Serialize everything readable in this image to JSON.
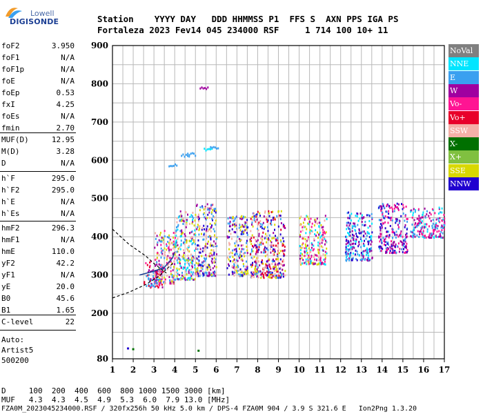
{
  "logo": {
    "top": "Lowell",
    "main": "DIGISONDE"
  },
  "header": {
    "row1": "Station    YYYY DAY   DDD HHMMSS P1  FFS S  AXN PPS IGA PS",
    "row2": "Fortaleza 2023 Fev14 045 234000 RSF     1 714 100 10+ 11"
  },
  "params": {
    "group1": [
      {
        "name": "foF2",
        "value": "3.950"
      },
      {
        "name": "foF1",
        "value": "N/A"
      },
      {
        "name": "foF1p",
        "value": "N/A"
      },
      {
        "name": "foE",
        "value": "N/A"
      },
      {
        "name": "foEp",
        "value": "0.53"
      },
      {
        "name": "fxI",
        "value": "4.25"
      },
      {
        "name": "foEs",
        "value": "N/A"
      },
      {
        "name": "fmin",
        "value": "2.70"
      }
    ],
    "group2": [
      {
        "name": "MUF(D)",
        "value": "12.95"
      },
      {
        "name": "M(D)",
        "value": "3.28"
      },
      {
        "name": "D",
        "value": "N/A"
      }
    ],
    "group3": [
      {
        "name": "h`F",
        "value": "295.0"
      },
      {
        "name": "h`F2",
        "value": "295.0"
      },
      {
        "name": "h`E",
        "value": "N/A"
      },
      {
        "name": "h`Es",
        "value": "N/A"
      }
    ],
    "group4": [
      {
        "name": "hmF2",
        "value": "296.3"
      },
      {
        "name": "hmF1",
        "value": "N/A"
      },
      {
        "name": "hmE",
        "value": "110.0"
      },
      {
        "name": "yF2",
        "value": "42.2"
      },
      {
        "name": "yF1",
        "value": "N/A"
      },
      {
        "name": "yE",
        "value": "20.0"
      },
      {
        "name": "B0",
        "value": "45.6"
      },
      {
        "name": "B1",
        "value": "1.65"
      }
    ],
    "group5": [
      {
        "name": "C-level",
        "value": "22"
      }
    ],
    "auto": [
      "Auto:",
      "Artist5",
      "500200"
    ]
  },
  "legend": [
    {
      "label": "NoVal",
      "color": "#808080"
    },
    {
      "label": "NNE",
      "color": "#00e5ff"
    },
    {
      "label": "E",
      "color": "#3aa0f0"
    },
    {
      "label": "W",
      "color": "#a000a0"
    },
    {
      "label": "Vo-",
      "color": "#ff1493"
    },
    {
      "label": "Vo+",
      "color": "#e8002a"
    },
    {
      "label": "SSW",
      "color": "#f4b0a8"
    },
    {
      "label": "X-",
      "color": "#007000"
    },
    {
      "label": "X+",
      "color": "#80c040"
    },
    {
      "label": "SSE",
      "color": "#d8d800"
    },
    {
      "label": "NNW",
      "color": "#2000d0"
    }
  ],
  "bottom": {
    "d_row": "D     100  200  400  600  800 1000 1500 3000 [km]",
    "muf_row": "MUF   4.3  4.3  4.5  4.9  5.3  6.0  7.9 13.0 [MHz]",
    "footer": "FZA0M_2023045234000.RSF / 320fx256h 50 kHz 5.0 km / DPS-4 FZA0M 904 / 3.9 S 321.6 E   Ion2Png 1.3.20"
  },
  "chart_data": {
    "type": "scatter",
    "x_ticks": [
      "1",
      "2",
      "3",
      "4",
      "5",
      "6",
      "7",
      "8",
      "9",
      "10",
      "11",
      "12",
      "13",
      "14",
      "15",
      "16",
      "17"
    ],
    "y_ticks": [
      "80",
      "200",
      "300",
      "400",
      "500",
      "600",
      "700",
      "800",
      "900"
    ],
    "xlim": [
      1,
      17
    ],
    "ylim_label_range": [
      80,
      900
    ],
    "grid": true,
    "legend_position": "right",
    "clusters": [
      {
        "freq": [
          2.5,
          3.4
        ],
        "height": [
          270,
          340
        ],
        "colors": [
          "#ff1493",
          "#a000a0",
          "#e8002a",
          "#3aa0f0"
        ]
      },
      {
        "freq": [
          3.0,
          4.0
        ],
        "height": [
          280,
          420
        ],
        "colors": [
          "#3aa0f0",
          "#a000a0",
          "#f4b0a8",
          "#d8d800",
          "#ff1493"
        ]
      },
      {
        "freq": [
          4.0,
          5.0
        ],
        "height": [
          290,
          470
        ],
        "colors": [
          "#3aa0f0",
          "#f4b0a8",
          "#d8d800",
          "#a000a0",
          "#00e5ff"
        ]
      },
      {
        "freq": [
          5.0,
          6.0
        ],
        "height": [
          300,
          490
        ],
        "colors": [
          "#3aa0f0",
          "#f4b0a8",
          "#d8d800",
          "#a000a0",
          "#2000d0"
        ]
      },
      {
        "freq": [
          6.5,
          7.5
        ],
        "height": [
          300,
          460
        ],
        "colors": [
          "#3aa0f0",
          "#f4b0a8",
          "#d8d800",
          "#2000d0",
          "#a000a0"
        ]
      },
      {
        "freq": [
          7.6,
          9.3
        ],
        "height": [
          295,
          470
        ],
        "colors": [
          "#f4b0a8",
          "#d8d800",
          "#3aa0f0",
          "#2000d0",
          "#a000a0",
          "#e8002a"
        ]
      },
      {
        "freq": [
          10.0,
          11.3
        ],
        "height": [
          330,
          460
        ],
        "colors": [
          "#f4b0a8",
          "#a000a0",
          "#d8d800",
          "#ff1493",
          "#00e5ff"
        ]
      },
      {
        "freq": [
          12.2,
          13.5
        ],
        "height": [
          340,
          470
        ],
        "colors": [
          "#00e5ff",
          "#2000d0",
          "#3aa0f0",
          "#a000a0"
        ]
      },
      {
        "freq": [
          13.8,
          15.2
        ],
        "height": [
          360,
          490
        ],
        "colors": [
          "#2000d0",
          "#a000a0",
          "#3aa0f0",
          "#ff1493"
        ]
      },
      {
        "freq": [
          15.3,
          17.0
        ],
        "height": [
          400,
          480
        ],
        "colors": [
          "#a000a0",
          "#3aa0f0",
          "#00e5ff",
          "#ff1493"
        ]
      }
    ],
    "upper_spikes": [
      {
        "freq": 4.3,
        "height": 615,
        "color": "#3aa0f0"
      },
      {
        "freq": 4.6,
        "height": 618,
        "color": "#3aa0f0"
      },
      {
        "freq": 5.4,
        "height": 630,
        "color": "#00e5ff"
      },
      {
        "freq": 5.7,
        "height": 635,
        "color": "#3aa0f0"
      },
      {
        "freq": 3.7,
        "height": 590,
        "color": "#3aa0f0"
      },
      {
        "freq": 5.2,
        "height": 790,
        "color": "#a000a0"
      }
    ],
    "isolated_points": [
      {
        "freq": 1.7,
        "height": 110,
        "color": "#2000d0"
      },
      {
        "freq": 1.95,
        "height": 108,
        "color": "#007000"
      },
      {
        "freq": 5.1,
        "height": 104,
        "color": "#007000"
      }
    ],
    "trace_curve": {
      "color": "#000000",
      "upper_arm": [
        [
          1.0,
          420
        ],
        [
          1.8,
          380
        ],
        [
          2.6,
          350
        ],
        [
          3.0,
          330
        ],
        [
          3.6,
          305
        ]
      ],
      "lower_arm": [
        [
          1.0,
          240
        ],
        [
          1.8,
          255
        ],
        [
          2.6,
          275
        ],
        [
          3.2,
          295
        ],
        [
          3.9,
          330
        ]
      ]
    },
    "profile_curve": {
      "color": "#1c3f94",
      "points": [
        [
          2.3,
          300
        ],
        [
          3.0,
          310
        ],
        [
          3.5,
          320
        ],
        [
          3.9,
          345
        ],
        [
          4.0,
          360
        ]
      ]
    }
  }
}
